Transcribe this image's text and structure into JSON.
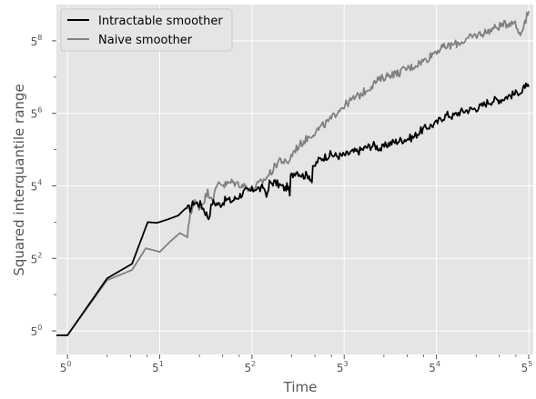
{
  "chart_data": {
    "type": "line",
    "title": "",
    "xlabel": "Time",
    "ylabel": "Squared interquantile range",
    "x_scale": "log5",
    "y_scale": "log5",
    "xlim_exponent": [
      -0.12,
      5.05
    ],
    "ylim_exponent": [
      -0.65,
      9.0
    ],
    "x_ticks": [
      {
        "base": "5",
        "exp": "0",
        "value": 0
      },
      {
        "base": "5",
        "exp": "1",
        "value": 1
      },
      {
        "base": "5",
        "exp": "2",
        "value": 2
      },
      {
        "base": "5",
        "exp": "3",
        "value": 3
      },
      {
        "base": "5",
        "exp": "4",
        "value": 4
      },
      {
        "base": "5",
        "exp": "5",
        "value": 5
      }
    ],
    "y_ticks": [
      {
        "base": "5",
        "exp": "0",
        "value": 0
      },
      {
        "base": "5",
        "exp": "2",
        "value": 2
      },
      {
        "base": "5",
        "exp": "4",
        "value": 4
      },
      {
        "base": "5",
        "exp": "6",
        "value": 6
      },
      {
        "base": "5",
        "exp": "8",
        "value": 8
      }
    ],
    "grid": true,
    "legend_position": "top-left",
    "series": [
      {
        "name": "Intractable smoother",
        "color": "#000000",
        "log5_points": [
          [
            -0.12,
            -0.12
          ],
          [
            0.0,
            -0.12
          ],
          [
            0.43,
            1.45
          ],
          [
            0.7,
            1.85
          ],
          [
            0.87,
            3.0
          ],
          [
            0.97,
            2.98
          ],
          [
            1.07,
            3.06
          ],
          [
            1.2,
            3.18
          ],
          [
            1.28,
            3.38
          ],
          [
            1.33,
            3.37
          ],
          [
            1.37,
            3.55
          ],
          [
            1.45,
            3.48
          ],
          [
            1.53,
            3.12
          ],
          [
            1.57,
            3.55
          ],
          [
            1.65,
            3.48
          ],
          [
            1.72,
            3.62
          ],
          [
            1.78,
            3.58
          ],
          [
            1.86,
            3.72
          ],
          [
            1.93,
            3.85
          ],
          [
            2.0,
            3.86
          ],
          [
            2.04,
            3.95
          ],
          [
            2.1,
            3.9
          ],
          [
            2.12,
            3.98
          ],
          [
            2.17,
            3.73
          ],
          [
            2.19,
            4.08
          ],
          [
            2.24,
            4.1
          ],
          [
            2.3,
            4.02
          ],
          [
            2.36,
            3.92
          ],
          [
            2.39,
            4.0
          ],
          [
            2.41,
            3.73
          ],
          [
            2.42,
            4.25
          ],
          [
            2.48,
            4.42
          ],
          [
            2.55,
            4.28
          ],
          [
            2.62,
            4.3
          ],
          [
            2.65,
            4.12
          ],
          [
            2.66,
            4.45
          ],
          [
            2.71,
            4.68
          ],
          [
            2.77,
            4.78
          ],
          [
            2.85,
            4.86
          ],
          [
            2.93,
            4.82
          ],
          [
            3.0,
            4.84
          ],
          [
            3.08,
            4.92
          ],
          [
            3.16,
            4.96
          ],
          [
            3.24,
            5.06
          ],
          [
            3.32,
            5.12
          ],
          [
            3.4,
            5.02
          ],
          [
            3.48,
            5.16
          ],
          [
            3.56,
            5.22
          ],
          [
            3.62,
            5.26
          ],
          [
            3.68,
            5.3
          ],
          [
            3.75,
            5.34
          ],
          [
            3.82,
            5.5
          ],
          [
            3.9,
            5.62
          ],
          [
            3.96,
            5.68
          ],
          [
            4.0,
            5.72
          ],
          [
            4.05,
            5.86
          ],
          [
            4.12,
            5.96
          ],
          [
            4.18,
            5.92
          ],
          [
            4.25,
            6.03
          ],
          [
            4.32,
            6.08
          ],
          [
            4.4,
            6.12
          ],
          [
            4.48,
            6.18
          ],
          [
            4.55,
            6.3
          ],
          [
            4.62,
            6.36
          ],
          [
            4.7,
            6.38
          ],
          [
            4.78,
            6.48
          ],
          [
            4.86,
            6.54
          ],
          [
            4.9,
            6.62
          ],
          [
            4.93,
            6.56
          ],
          [
            4.96,
            6.78
          ],
          [
            4.98,
            6.68
          ],
          [
            5.0,
            6.73
          ]
        ]
      },
      {
        "name": "Naive smoother",
        "color": "#808080",
        "log5_points": [
          [
            -0.12,
            -0.12
          ],
          [
            0.0,
            -0.12
          ],
          [
            0.43,
            1.4
          ],
          [
            0.7,
            1.68
          ],
          [
            0.85,
            2.28
          ],
          [
            1.0,
            2.18
          ],
          [
            1.12,
            2.48
          ],
          [
            1.22,
            2.7
          ],
          [
            1.3,
            2.58
          ],
          [
            1.33,
            3.25
          ],
          [
            1.38,
            3.55
          ],
          [
            1.44,
            3.4
          ],
          [
            1.52,
            3.82
          ],
          [
            1.58,
            3.66
          ],
          [
            1.64,
            4.12
          ],
          [
            1.7,
            4.02
          ],
          [
            1.78,
            4.1
          ],
          [
            1.86,
            4.05
          ],
          [
            1.94,
            3.98
          ],
          [
            2.0,
            3.92
          ],
          [
            2.06,
            4.02
          ],
          [
            2.14,
            4.18
          ],
          [
            2.22,
            4.42
          ],
          [
            2.3,
            4.74
          ],
          [
            2.38,
            4.6
          ],
          [
            2.46,
            4.98
          ],
          [
            2.54,
            5.18
          ],
          [
            2.62,
            5.36
          ],
          [
            2.7,
            5.52
          ],
          [
            2.78,
            5.68
          ],
          [
            2.86,
            5.84
          ],
          [
            2.94,
            6.1
          ],
          [
            3.02,
            6.25
          ],
          [
            3.1,
            6.4
          ],
          [
            3.18,
            6.52
          ],
          [
            3.26,
            6.68
          ],
          [
            3.34,
            6.86
          ],
          [
            3.42,
            6.98
          ],
          [
            3.5,
            7.08
          ],
          [
            3.58,
            7.1
          ],
          [
            3.66,
            7.22
          ],
          [
            3.74,
            7.28
          ],
          [
            3.82,
            7.4
          ],
          [
            3.9,
            7.5
          ],
          [
            3.98,
            7.7
          ],
          [
            4.06,
            7.8
          ],
          [
            4.14,
            7.86
          ],
          [
            4.22,
            7.92
          ],
          [
            4.3,
            8.0
          ],
          [
            4.38,
            8.1
          ],
          [
            4.46,
            8.18
          ],
          [
            4.54,
            8.24
          ],
          [
            4.62,
            8.34
          ],
          [
            4.7,
            8.42
          ],
          [
            4.78,
            8.48
          ],
          [
            4.84,
            8.56
          ],
          [
            4.88,
            8.3
          ],
          [
            4.91,
            8.18
          ],
          [
            4.94,
            8.42
          ],
          [
            4.97,
            8.6
          ],
          [
            5.0,
            8.82
          ]
        ]
      }
    ]
  }
}
